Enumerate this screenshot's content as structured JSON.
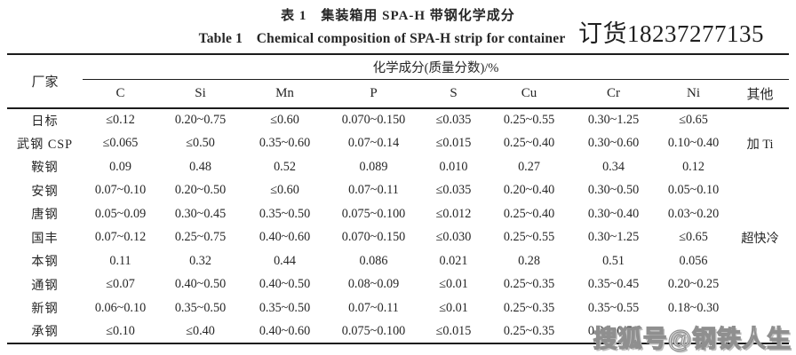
{
  "caption": {
    "zh": "表 1　集装箱用 SPA-H 带钢化学成分",
    "en": "Table 1　Chemical composition of SPA-H strip for container"
  },
  "watermarks": {
    "top_right": "订货18237277135",
    "bottom_right": "搜狐号@钢铁人生"
  },
  "table": {
    "row_header": "厂家",
    "group_header": "化学成分(质量分数)/%",
    "columns": [
      "C",
      "Si",
      "Mn",
      "P",
      "S",
      "Cu",
      "Cr",
      "Ni",
      "其他"
    ],
    "rows": [
      {
        "name": "日标",
        "values": [
          "≤0.12",
          "0.20~0.75",
          "≤0.60",
          "0.070~0.150",
          "≤0.035",
          "0.25~0.55",
          "0.30~1.25",
          "≤0.65",
          ""
        ]
      },
      {
        "name": "武钢 CSP",
        "values": [
          "≤0.065",
          "≤0.50",
          "0.35~0.60",
          "0.07~0.14",
          "≤0.015",
          "0.25~0.40",
          "0.30~0.60",
          "0.10~0.40",
          "加 Ti"
        ]
      },
      {
        "name": "鞍钢",
        "values": [
          "0.09",
          "0.48",
          "0.52",
          "0.089",
          "0.010",
          "0.27",
          "0.34",
          "0.12",
          ""
        ]
      },
      {
        "name": "安钢",
        "values": [
          "0.07~0.10",
          "0.20~0.50",
          "≤0.60",
          "0.07~0.11",
          "≤0.035",
          "0.20~0.40",
          "0.30~0.50",
          "0.05~0.10",
          ""
        ]
      },
      {
        "name": "唐钢",
        "values": [
          "0.05~0.09",
          "0.30~0.45",
          "0.35~0.50",
          "0.075~0.100",
          "≤0.012",
          "0.25~0.40",
          "0.30~0.40",
          "0.03~0.20",
          ""
        ]
      },
      {
        "name": "国丰",
        "values": [
          "0.07~0.12",
          "0.25~0.75",
          "0.40~0.60",
          "0.070~0.150",
          "≤0.030",
          "0.25~0.55",
          "0.30~1.25",
          "≤0.65",
          "超快冷"
        ]
      },
      {
        "name": "本钢",
        "values": [
          "0.11",
          "0.32",
          "0.44",
          "0.086",
          "0.021",
          "0.28",
          "0.51",
          "0.056",
          ""
        ]
      },
      {
        "name": "通钢",
        "values": [
          "≤0.07",
          "0.40~0.50",
          "0.40~0.50",
          "0.08~0.09",
          "≤0.01",
          "0.25~0.35",
          "0.35~0.45",
          "0.20~0.25",
          ""
        ]
      },
      {
        "name": "新钢",
        "values": [
          "0.06~0.10",
          "0.35~0.50",
          "0.35~0.50",
          "0.07~0.11",
          "≤0.01",
          "0.25~0.35",
          "0.35~0.55",
          "0.18~0.30",
          ""
        ]
      },
      {
        "name": "承钢",
        "values": [
          "≤0.10",
          "≤0.40",
          "0.40~0.60",
          "0.075~0.100",
          "≤0.015",
          "0.25~0.35",
          "0.30~0.50",
          "",
          ""
        ]
      }
    ]
  }
}
